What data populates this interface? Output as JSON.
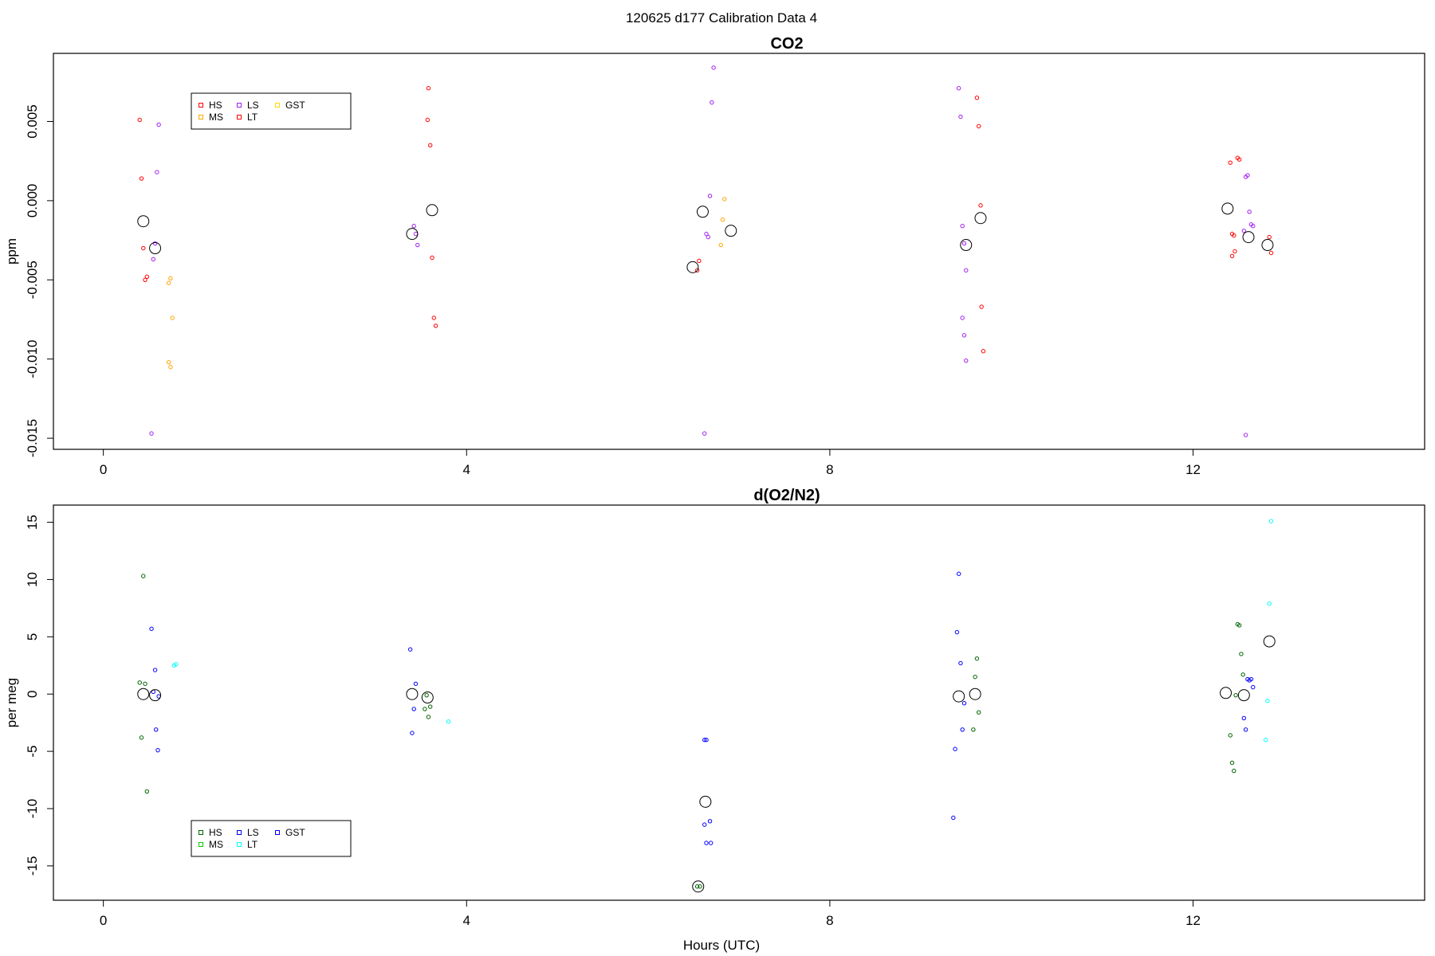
{
  "figure": {
    "title": "120625   d177   Calibration Data 4",
    "xlabel": "Hours (UTC)"
  },
  "chart_data": [
    {
      "type": "scatter",
      "title": "CO2",
      "ylabel": "ppm",
      "xlabel": "",
      "xlim": [
        -0.55,
        14.55
      ],
      "ylim": [
        -0.0157,
        0.0093
      ],
      "x_ticks": [
        0,
        4,
        8,
        12
      ],
      "y_ticks": [
        0.005,
        0.0,
        -0.005,
        -0.01,
        -0.015
      ],
      "y_tick_labels": [
        "0.005",
        "0.000",
        "-0.005",
        "-0.010",
        "-0.015"
      ],
      "legend": {
        "position": "top-left",
        "entries": [
          {
            "label": "HS",
            "color": "#ff0000"
          },
          {
            "label": "MS",
            "color": "#ffa500"
          },
          {
            "label": "LS",
            "color": "#a020f0"
          },
          {
            "label": "LT",
            "color": "#ff0000"
          },
          {
            "label": "GST",
            "color": "#ffd700"
          }
        ]
      },
      "series": [
        {
          "name": "HS",
          "color": "#ff0000",
          "points": [
            [
              0.4,
              0.0051
            ],
            [
              0.42,
              0.0014
            ],
            [
              0.44,
              -0.003
            ],
            [
              0.46,
              -0.005
            ],
            [
              0.48,
              -0.0048
            ],
            [
              3.58,
              0.0071
            ],
            [
              3.57,
              0.0051
            ],
            [
              3.6,
              0.0035
            ],
            [
              3.62,
              -0.0036
            ],
            [
              3.64,
              -0.0074
            ],
            [
              3.66,
              -0.0079
            ],
            [
              6.54,
              -0.0044
            ],
            [
              6.56,
              -0.0038
            ],
            [
              9.62,
              0.0065
            ],
            [
              9.64,
              0.0047
            ],
            [
              9.66,
              -0.0003
            ],
            [
              9.67,
              -0.0067
            ],
            [
              9.69,
              -0.0095
            ],
            [
              12.41,
              0.0024
            ],
            [
              12.43,
              -0.0021
            ],
            [
              12.45,
              -0.0022
            ],
            [
              12.43,
              -0.0035
            ],
            [
              12.46,
              -0.0032
            ],
            [
              12.49,
              0.0027
            ],
            [
              12.51,
              0.0026
            ],
            [
              12.84,
              -0.0023
            ],
            [
              12.86,
              -0.0033
            ]
          ]
        },
        {
          "name": "MS",
          "color": "#ffa500",
          "points": [
            [
              0.74,
              -0.0049
            ],
            [
              0.72,
              -0.0052
            ],
            [
              0.76,
              -0.0074
            ],
            [
              0.72,
              -0.0102
            ],
            [
              0.74,
              -0.0105
            ],
            [
              6.84,
              0.0001
            ],
            [
              6.82,
              -0.0012
            ],
            [
              6.8,
              -0.0028
            ]
          ]
        },
        {
          "name": "LS",
          "color": "#a020f0",
          "points": [
            [
              0.61,
              0.0048
            ],
            [
              0.59,
              0.0018
            ],
            [
              0.57,
              -0.0027
            ],
            [
              0.55,
              -0.0037
            ],
            [
              0.53,
              -0.0147
            ],
            [
              3.42,
              -0.0016
            ],
            [
              3.44,
              -0.0021
            ],
            [
              3.46,
              -0.0028
            ],
            [
              6.72,
              0.0084
            ],
            [
              6.7,
              0.0062
            ],
            [
              6.68,
              0.0003
            ],
            [
              6.66,
              -0.0023
            ],
            [
              6.64,
              -0.0021
            ],
            [
              6.62,
              -0.0147
            ],
            [
              9.42,
              0.0071
            ],
            [
              9.44,
              0.0053
            ],
            [
              9.46,
              -0.0016
            ],
            [
              9.48,
              -0.0027
            ],
            [
              9.5,
              -0.0044
            ],
            [
              9.46,
              -0.0074
            ],
            [
              9.48,
              -0.0085
            ],
            [
              9.5,
              -0.0101
            ],
            [
              12.58,
              0.0015
            ],
            [
              12.6,
              0.0016
            ],
            [
              12.62,
              -0.0007
            ],
            [
              12.64,
              -0.0015
            ],
            [
              12.66,
              -0.0016
            ],
            [
              12.56,
              -0.0019
            ],
            [
              12.58,
              -0.0148
            ]
          ]
        }
      ],
      "means": [
        [
          0.44,
          -0.0013
        ],
        [
          0.57,
          -0.003
        ],
        [
          3.4,
          -0.0021
        ],
        [
          3.62,
          -0.0006
        ],
        [
          6.49,
          -0.0042
        ],
        [
          6.6,
          -0.0007
        ],
        [
          6.91,
          -0.0019
        ],
        [
          9.5,
          -0.0028
        ],
        [
          9.66,
          -0.0011
        ],
        [
          12.38,
          -0.0005
        ],
        [
          12.61,
          -0.0023
        ],
        [
          12.82,
          -0.0028
        ]
      ]
    },
    {
      "type": "scatter",
      "title": "d(O2/N2)",
      "ylabel": "per meg",
      "xlabel": "Hours (UTC)",
      "xlim": [
        -0.55,
        14.55
      ],
      "ylim": [
        -18.0,
        16.5
      ],
      "x_ticks": [
        0,
        4,
        8,
        12
      ],
      "y_ticks": [
        15,
        10,
        5,
        0,
        -5,
        -10,
        -15
      ],
      "y_tick_labels": [
        "15",
        "10",
        "5",
        "0",
        "-5",
        "-10",
        "-15"
      ],
      "legend": {
        "position": "bottom-left",
        "entries": [
          {
            "label": "HS",
            "color": "#006400"
          },
          {
            "label": "MS",
            "color": "#00cd00"
          },
          {
            "label": "LS",
            "color": "#0000ff"
          },
          {
            "label": "LT",
            "color": "#00ffff"
          },
          {
            "label": "GST",
            "color": "#0000ff"
          }
        ]
      },
      "series": [
        {
          "name": "HS",
          "color": "#006400",
          "points": [
            [
              0.4,
              1.0
            ],
            [
              0.42,
              -3.8
            ],
            [
              0.44,
              10.3
            ],
            [
              0.46,
              0.9
            ],
            [
              0.48,
              -8.5
            ],
            [
              3.54,
              -1.3
            ],
            [
              3.56,
              -0.1
            ],
            [
              3.58,
              -2.0
            ],
            [
              3.6,
              -1.1
            ],
            [
              6.54,
              -16.8
            ],
            [
              6.57,
              -16.8
            ],
            [
              9.58,
              -3.1
            ],
            [
              9.6,
              1.5
            ],
            [
              9.62,
              3.1
            ],
            [
              9.64,
              -1.6
            ],
            [
              12.41,
              -3.6
            ],
            [
              12.43,
              -6.0
            ],
            [
              12.45,
              -6.7
            ],
            [
              12.47,
              -0.1
            ],
            [
              12.49,
              6.1
            ],
            [
              12.51,
              6.0
            ],
            [
              12.53,
              3.5
            ],
            [
              12.55,
              1.7
            ]
          ]
        },
        {
          "name": "LS",
          "color": "#0000ff",
          "points": [
            [
              0.53,
              5.7
            ],
            [
              0.55,
              0.2
            ],
            [
              0.57,
              2.1
            ],
            [
              0.58,
              -3.1
            ],
            [
              0.6,
              -4.9
            ],
            [
              0.61,
              -0.2
            ],
            [
              3.38,
              3.9
            ],
            [
              3.4,
              -3.4
            ],
            [
              3.42,
              -1.3
            ],
            [
              3.44,
              0.9
            ],
            [
              6.62,
              -4.0
            ],
            [
              6.64,
              -4.0
            ],
            [
              6.62,
              -11.4
            ],
            [
              6.68,
              -11.1
            ],
            [
              6.64,
              -13.0
            ],
            [
              6.69,
              -13.0
            ],
            [
              9.36,
              -10.8
            ],
            [
              9.38,
              -4.8
            ],
            [
              9.4,
              5.4
            ],
            [
              9.42,
              10.5
            ],
            [
              9.44,
              2.7
            ],
            [
              9.46,
              -3.1
            ],
            [
              9.48,
              -0.8
            ],
            [
              12.56,
              -2.1
            ],
            [
              12.58,
              -3.1
            ],
            [
              12.6,
              1.3
            ],
            [
              12.62,
              1.2
            ],
            [
              12.64,
              1.3
            ],
            [
              12.66,
              0.6
            ]
          ]
        },
        {
          "name": "LT",
          "color": "#00ffff",
          "points": [
            [
              0.8,
              2.6
            ],
            [
              0.78,
              2.5
            ],
            [
              3.8,
              -2.4
            ],
            [
              12.8,
              -4.0
            ],
            [
              12.82,
              -0.6
            ],
            [
              12.84,
              7.9
            ],
            [
              12.86,
              15.1
            ]
          ]
        }
      ],
      "means": [
        [
          0.44,
          0.0
        ],
        [
          0.57,
          -0.1
        ],
        [
          3.4,
          0.0
        ],
        [
          3.57,
          -0.3
        ],
        [
          6.55,
          -16.8
        ],
        [
          6.63,
          -9.4
        ],
        [
          9.42,
          -0.2
        ],
        [
          9.6,
          0.0
        ],
        [
          12.36,
          0.1
        ],
        [
          12.56,
          -0.1
        ],
        [
          12.84,
          4.6
        ]
      ]
    }
  ]
}
